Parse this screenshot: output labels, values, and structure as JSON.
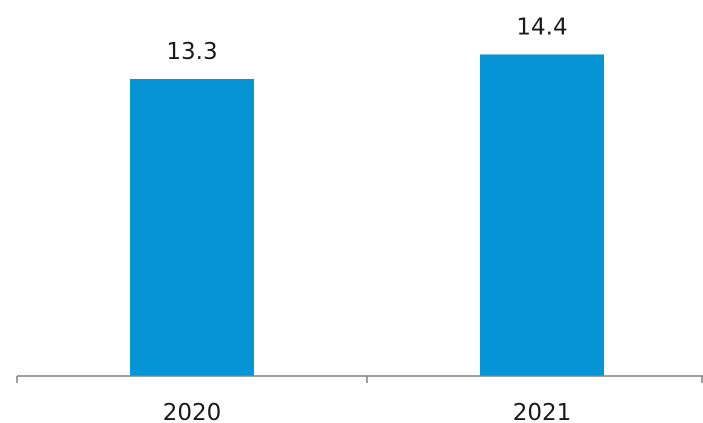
{
  "chart_data": {
    "type": "bar",
    "categories": [
      "2020",
      "2021"
    ],
    "values": [
      13.3,
      14.4
    ],
    "value_labels": [
      "13.3",
      "14.4"
    ],
    "title": "",
    "xlabel": "",
    "ylabel": "",
    "ylim": [
      0,
      16
    ],
    "grid": false,
    "legend": "none",
    "colors": {
      "bar": "#0595D6",
      "axis": "#808080",
      "text": "#1a1a1a"
    }
  }
}
